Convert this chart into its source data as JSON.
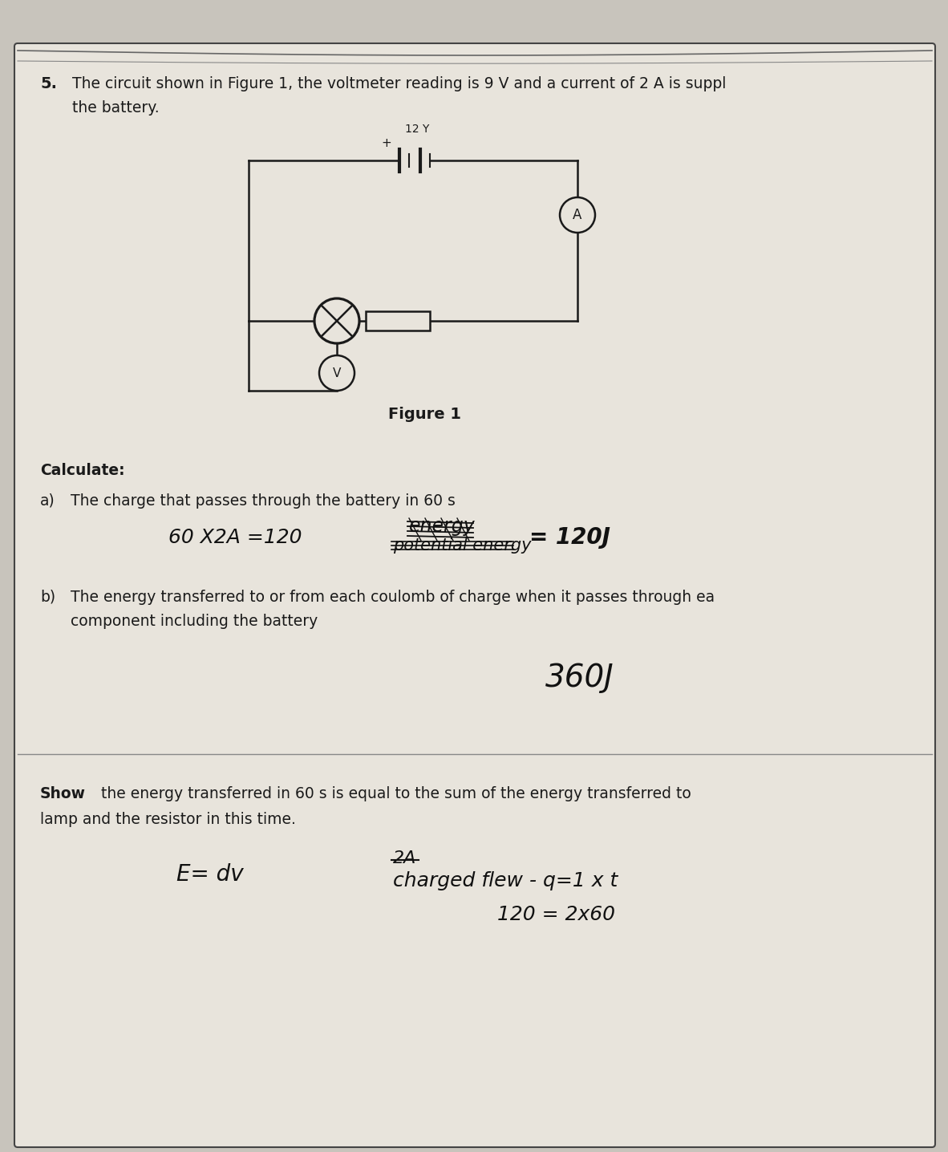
{
  "bg_color": "#c8c4bc",
  "paper_color": "#e8e4dc",
  "border_color": "#444444",
  "text_color": "#1a1a1a",
  "question_number": "5.",
  "question_text": "The circuit shown in Figure 1, the voltmeter reading is 9 V and a current of 2 A is suppl",
  "question_text2": "the battery.",
  "figure_label": "Figure 1",
  "battery_label": "12 Y",
  "calculate_label": "Calculate:",
  "part_a_label": "a)",
  "part_a_text": "The charge that passes through the battery in 60 s",
  "part_b_label": "b)",
  "part_b_text": "The energy transferred to or from each coulomb of charge when it passes through ea",
  "part_b_text2": "component including the battery",
  "show_label": "Show",
  "show_text": " the energy transferred in 60 s is equal to the sum of the energy transferred to",
  "show_text2": "lamp and the resistor in this time.",
  "hw_a_left": "60 X2A =120",
  "hw_a_energy": "energy",
  "hw_a_potential": "potential energy",
  "hw_a_right": "= 120J",
  "hw_b_ans": "360J",
  "hw_show1": "E= dv",
  "hw_show2_strike": "2A",
  "hw_show3": "charged flew - q=1 x t",
  "hw_show4": "120 = 2x60",
  "circuit_color": "#1a1a1a",
  "hw_color": "#111111"
}
